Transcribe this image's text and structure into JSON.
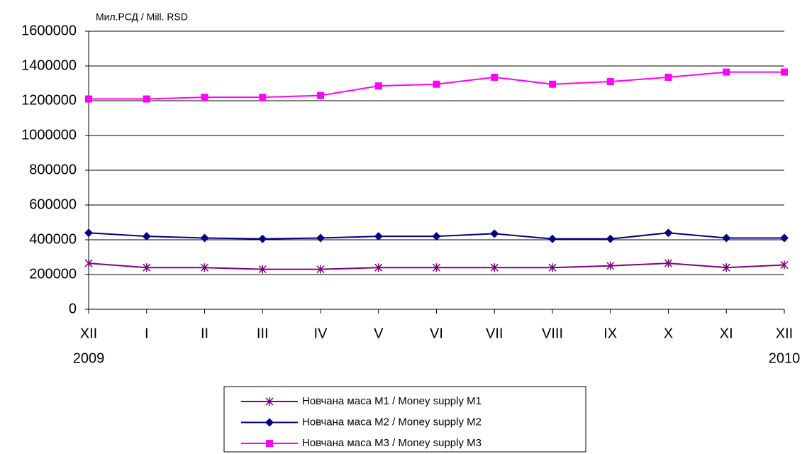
{
  "chart_data": {
    "type": "line",
    "y_unit_label": "Мил.РСД / Mill. RSD",
    "categories": [
      "XII",
      "I",
      "II",
      "III",
      "IV",
      "V",
      "VI",
      "VII",
      "VIII",
      "IX",
      "X",
      "XI",
      "XII"
    ],
    "category_years": [
      "2009",
      null,
      null,
      null,
      null,
      null,
      null,
      null,
      null,
      null,
      null,
      null,
      "2010"
    ],
    "series": [
      {
        "name": "Новчана маса M1 / Money supply M1",
        "color": "#800080",
        "marker": "asterisk",
        "values": [
          265000,
          240000,
          240000,
          230000,
          230000,
          240000,
          240000,
          240000,
          240000,
          250000,
          265000,
          240000,
          255000
        ]
      },
      {
        "name": "Новчана маса M2 / Money supply M2",
        "color": "#000080",
        "marker": "diamond",
        "values": [
          440000,
          420000,
          410000,
          405000,
          410000,
          420000,
          420000,
          435000,
          405000,
          405000,
          440000,
          410000,
          410000
        ]
      },
      {
        "name": "Новчана маса M3 / Money supply M3",
        "color": "#ff00ff",
        "marker": "square",
        "values": [
          1210000,
          1210000,
          1220000,
          1220000,
          1230000,
          1285000,
          1295000,
          1335000,
          1295000,
          1310000,
          1335000,
          1365000,
          1365000
        ]
      }
    ],
    "ylim": [
      0,
      1600000
    ],
    "yticks": [
      0,
      200000,
      400000,
      600000,
      800000,
      1000000,
      1200000,
      1400000,
      1600000
    ],
    "grid": true
  }
}
